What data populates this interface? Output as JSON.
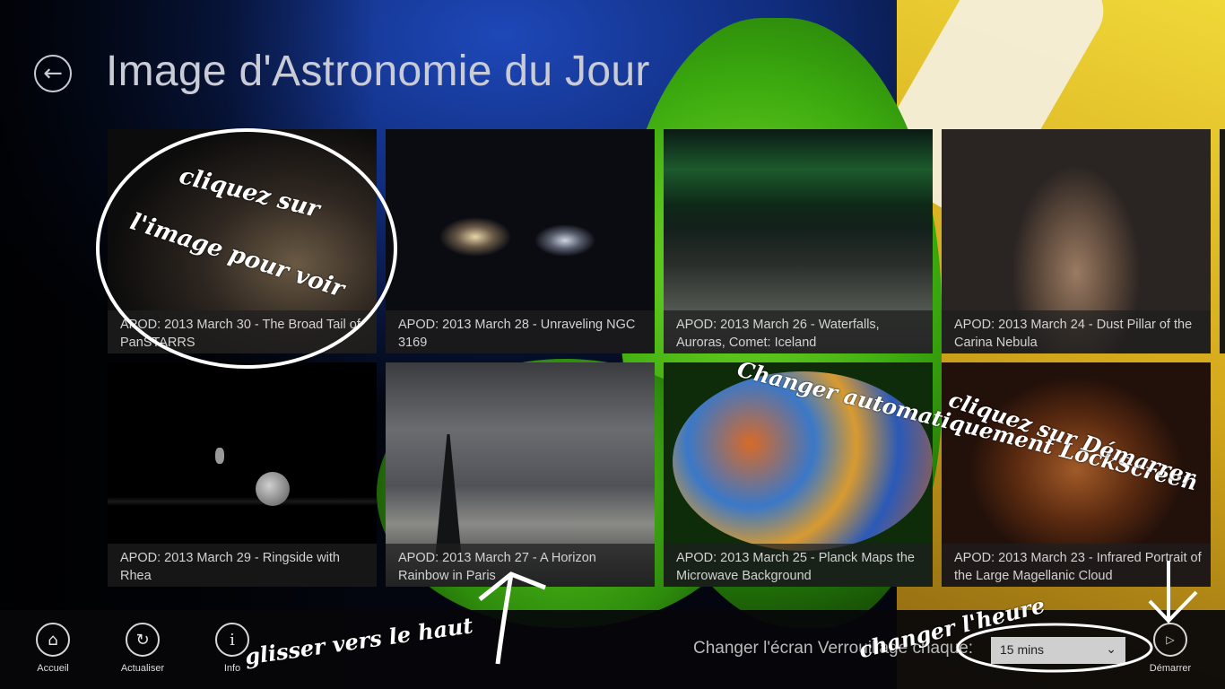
{
  "header": {
    "title": "Image d'Astronomie du Jour"
  },
  "tiles": [
    {
      "caption": "APOD: 2013 March 30 - The Broad Tail of PanSTARRS"
    },
    {
      "caption": "APOD: 2013 March 28 - Unraveling NGC 3169"
    },
    {
      "caption": "APOD: 2013 March 26 - Waterfalls, Auroras, Comet: Iceland"
    },
    {
      "caption": "APOD: 2013 March 24 - Dust Pillar of the Carina Nebula"
    },
    {
      "caption": "APOD: 2013 March 29 - Ringside with Rhea"
    },
    {
      "caption": "APOD: 2013 March 27 - A Horizon Rainbow in Paris"
    },
    {
      "caption": "APOD: 2013 March 25 - Planck Maps the Microwave Background"
    },
    {
      "caption": "APOD: 2013 March 23 - Infrared Portrait of the Large Magellanic Cloud"
    }
  ],
  "appbar": {
    "home_label": "Accueil",
    "refresh_label": "Actualiser",
    "info_label": "Info",
    "change_label": "Changer l'écran Verrouillage chaque:",
    "interval_value": "15 mins",
    "start_label": "Démarrer"
  },
  "annotations": {
    "click_image_1": "cliquez sur",
    "click_image_2": "l'image pour voir",
    "auto_change_1": "Changer automatiquement LockScreen",
    "click_start": "cliquez sur Démarrer",
    "change_time": "changer l'heure",
    "swipe_up": "glisser vers le haut"
  },
  "colors": {
    "title": "#c9cbd6",
    "appbar": "#06060a",
    "select_bg": "#cfcfcf"
  }
}
